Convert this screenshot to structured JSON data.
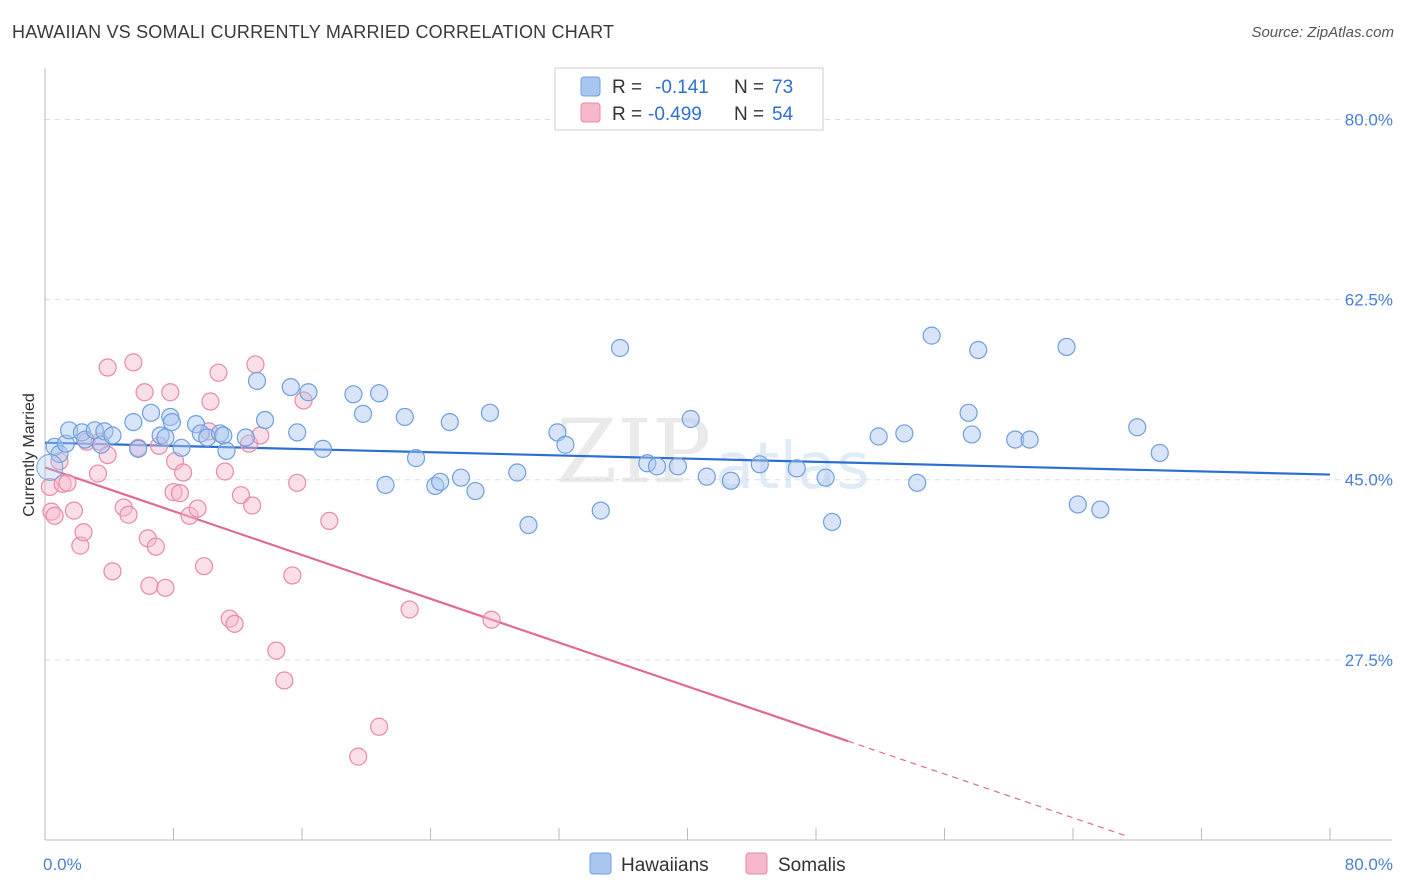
{
  "header": {
    "title": "HAWAIIAN VS SOMALI CURRENTLY MARRIED CORRELATION CHART",
    "source": "Source: ZipAtlas.com"
  },
  "watermark": {
    "zip": "ZIP",
    "atlas": "atlas"
  },
  "colors": {
    "hawaiians_fill": "#a9c6ef",
    "hawaiians_stroke": "#6f9fe0",
    "hawaiians_line": "#2d6fd1",
    "somalis_fill": "#f6b8cb",
    "somalis_stroke": "#e88aa8",
    "somalis_line": "#e06a95",
    "tick_label": "#4a7fd4",
    "grid": "#dddddd"
  },
  "legend": {
    "rows": [
      {
        "r_label": "R =",
        "r_value": "-0.141",
        "n_label": "N =",
        "n_value": "73"
      },
      {
        "r_label": "R =",
        "r_value": "-0.499",
        "n_label": "N =",
        "n_value": "54"
      }
    ]
  },
  "bottom_legend": {
    "items": [
      "Hawaiians",
      "Somalis"
    ]
  },
  "chart_data": {
    "type": "scatter",
    "title": "HAWAIIAN VS SOMALI CURRENTLY MARRIED CORRELATION CHART",
    "xlabel": "",
    "ylabel": "Currently Married",
    "xlim": [
      0,
      80
    ],
    "ylim": [
      10,
      85
    ],
    "x_tick_labels": [
      "0.0%",
      "80.0%"
    ],
    "y_ticks": [
      27.5,
      45.0,
      62.5,
      80.0
    ],
    "y_tick_labels": [
      "27.5%",
      "45.0%",
      "62.5%",
      "80.0%"
    ],
    "grid": "horizontal dashed",
    "legend_position": "top-center",
    "series": [
      {
        "name": "Hawaiians",
        "r": -0.141,
        "n": 73,
        "trend": {
          "x": [
            0,
            80
          ],
          "y": [
            48.6,
            45.5
          ]
        },
        "points": [
          [
            0.6,
            48.2
          ],
          [
            0.9,
            47.5
          ],
          [
            1.3,
            48.5
          ],
          [
            1.5,
            49.8
          ],
          [
            2.3,
            49.6
          ],
          [
            2.5,
            48.9
          ],
          [
            3.1,
            49.8
          ],
          [
            3.5,
            48.4
          ],
          [
            3.7,
            49.7
          ],
          [
            4.2,
            49.3
          ],
          [
            5.5,
            50.6
          ],
          [
            5.8,
            48.0
          ],
          [
            6.6,
            51.5
          ],
          [
            7.2,
            49.3
          ],
          [
            7.5,
            49.1
          ],
          [
            7.8,
            51.1
          ],
          [
            7.9,
            50.6
          ],
          [
            8.5,
            48.1
          ],
          [
            9.4,
            50.4
          ],
          [
            9.7,
            49.5
          ],
          [
            10.1,
            49.1
          ],
          [
            10.9,
            49.5
          ],
          [
            11.1,
            49.3
          ],
          [
            11.3,
            47.8
          ],
          [
            12.5,
            49.1
          ],
          [
            13.2,
            54.6
          ],
          [
            13.7,
            50.8
          ],
          [
            15.3,
            54.0
          ],
          [
            15.7,
            49.6
          ],
          [
            16.4,
            53.5
          ],
          [
            17.3,
            48.0
          ],
          [
            19.2,
            53.3
          ],
          [
            19.8,
            51.4
          ],
          [
            20.8,
            53.4
          ],
          [
            21.2,
            44.5
          ],
          [
            22.4,
            51.1
          ],
          [
            23.1,
            47.1
          ],
          [
            24.3,
            44.4
          ],
          [
            24.6,
            44.8
          ],
          [
            25.2,
            50.6
          ],
          [
            25.9,
            45.2
          ],
          [
            26.8,
            43.9
          ],
          [
            27.7,
            51.5
          ],
          [
            29.4,
            45.7
          ],
          [
            30.1,
            40.6
          ],
          [
            31.9,
            49.6
          ],
          [
            32.4,
            48.4
          ],
          [
            34.6,
            42.0
          ],
          [
            35.8,
            57.8
          ],
          [
            37.5,
            46.6
          ],
          [
            38.1,
            46.3
          ],
          [
            39.4,
            46.3
          ],
          [
            40.2,
            50.9
          ],
          [
            41.2,
            45.3
          ],
          [
            42.7,
            44.9
          ],
          [
            44.5,
            46.5
          ],
          [
            46.8,
            46.1
          ],
          [
            48.6,
            45.2
          ],
          [
            49.0,
            40.9
          ],
          [
            51.9,
            49.2
          ],
          [
            53.5,
            49.5
          ],
          [
            54.3,
            44.7
          ],
          [
            55.2,
            59.0
          ],
          [
            57.5,
            51.5
          ],
          [
            57.7,
            49.4
          ],
          [
            58.1,
            57.6
          ],
          [
            60.4,
            48.9
          ],
          [
            61.3,
            48.9
          ],
          [
            63.6,
            57.9
          ],
          [
            64.3,
            42.6
          ],
          [
            65.7,
            42.1
          ],
          [
            68.0,
            50.1
          ],
          [
            69.4,
            47.6
          ]
        ]
      },
      {
        "name": "Somalis",
        "r": -0.499,
        "n": 54,
        "trend": {
          "x": [
            0,
            50
          ],
          "y": [
            46.2,
            19.6
          ]
        },
        "trend_dashed": {
          "x": [
            50,
            67.5
          ],
          "y": [
            19.6,
            10.3
          ]
        },
        "points": [
          [
            0.3,
            44.3
          ],
          [
            0.4,
            41.9
          ],
          [
            0.6,
            41.5
          ],
          [
            0.9,
            46.8
          ],
          [
            1.1,
            44.6
          ],
          [
            1.4,
            44.7
          ],
          [
            1.8,
            42.0
          ],
          [
            2.2,
            38.6
          ],
          [
            2.4,
            39.9
          ],
          [
            2.6,
            48.7
          ],
          [
            3.3,
            45.6
          ],
          [
            3.4,
            48.7
          ],
          [
            3.9,
            55.9
          ],
          [
            3.9,
            47.4
          ],
          [
            4.2,
            36.1
          ],
          [
            4.9,
            42.3
          ],
          [
            5.2,
            41.6
          ],
          [
            5.5,
            56.4
          ],
          [
            5.8,
            48.1
          ],
          [
            6.2,
            53.5
          ],
          [
            6.4,
            39.3
          ],
          [
            6.5,
            34.7
          ],
          [
            6.9,
            38.5
          ],
          [
            7.1,
            48.3
          ],
          [
            7.5,
            34.5
          ],
          [
            7.8,
            53.5
          ],
          [
            8.0,
            43.8
          ],
          [
            8.1,
            46.8
          ],
          [
            8.4,
            43.7
          ],
          [
            8.6,
            45.7
          ],
          [
            9.0,
            41.5
          ],
          [
            9.5,
            42.2
          ],
          [
            9.9,
            36.6
          ],
          [
            10.2,
            49.7
          ],
          [
            10.3,
            52.6
          ],
          [
            10.8,
            55.4
          ],
          [
            11.2,
            45.8
          ],
          [
            11.5,
            31.5
          ],
          [
            11.8,
            31.0
          ],
          [
            12.2,
            43.5
          ],
          [
            12.7,
            48.5
          ],
          [
            12.9,
            42.5
          ],
          [
            13.1,
            56.2
          ],
          [
            13.4,
            49.3
          ],
          [
            14.4,
            28.4
          ],
          [
            14.9,
            25.5
          ],
          [
            15.4,
            35.7
          ],
          [
            15.7,
            44.7
          ],
          [
            16.1,
            52.7
          ],
          [
            17.7,
            41.0
          ],
          [
            19.5,
            18.1
          ],
          [
            20.8,
            21.0
          ],
          [
            22.7,
            32.4
          ],
          [
            27.8,
            31.4
          ]
        ]
      }
    ]
  }
}
